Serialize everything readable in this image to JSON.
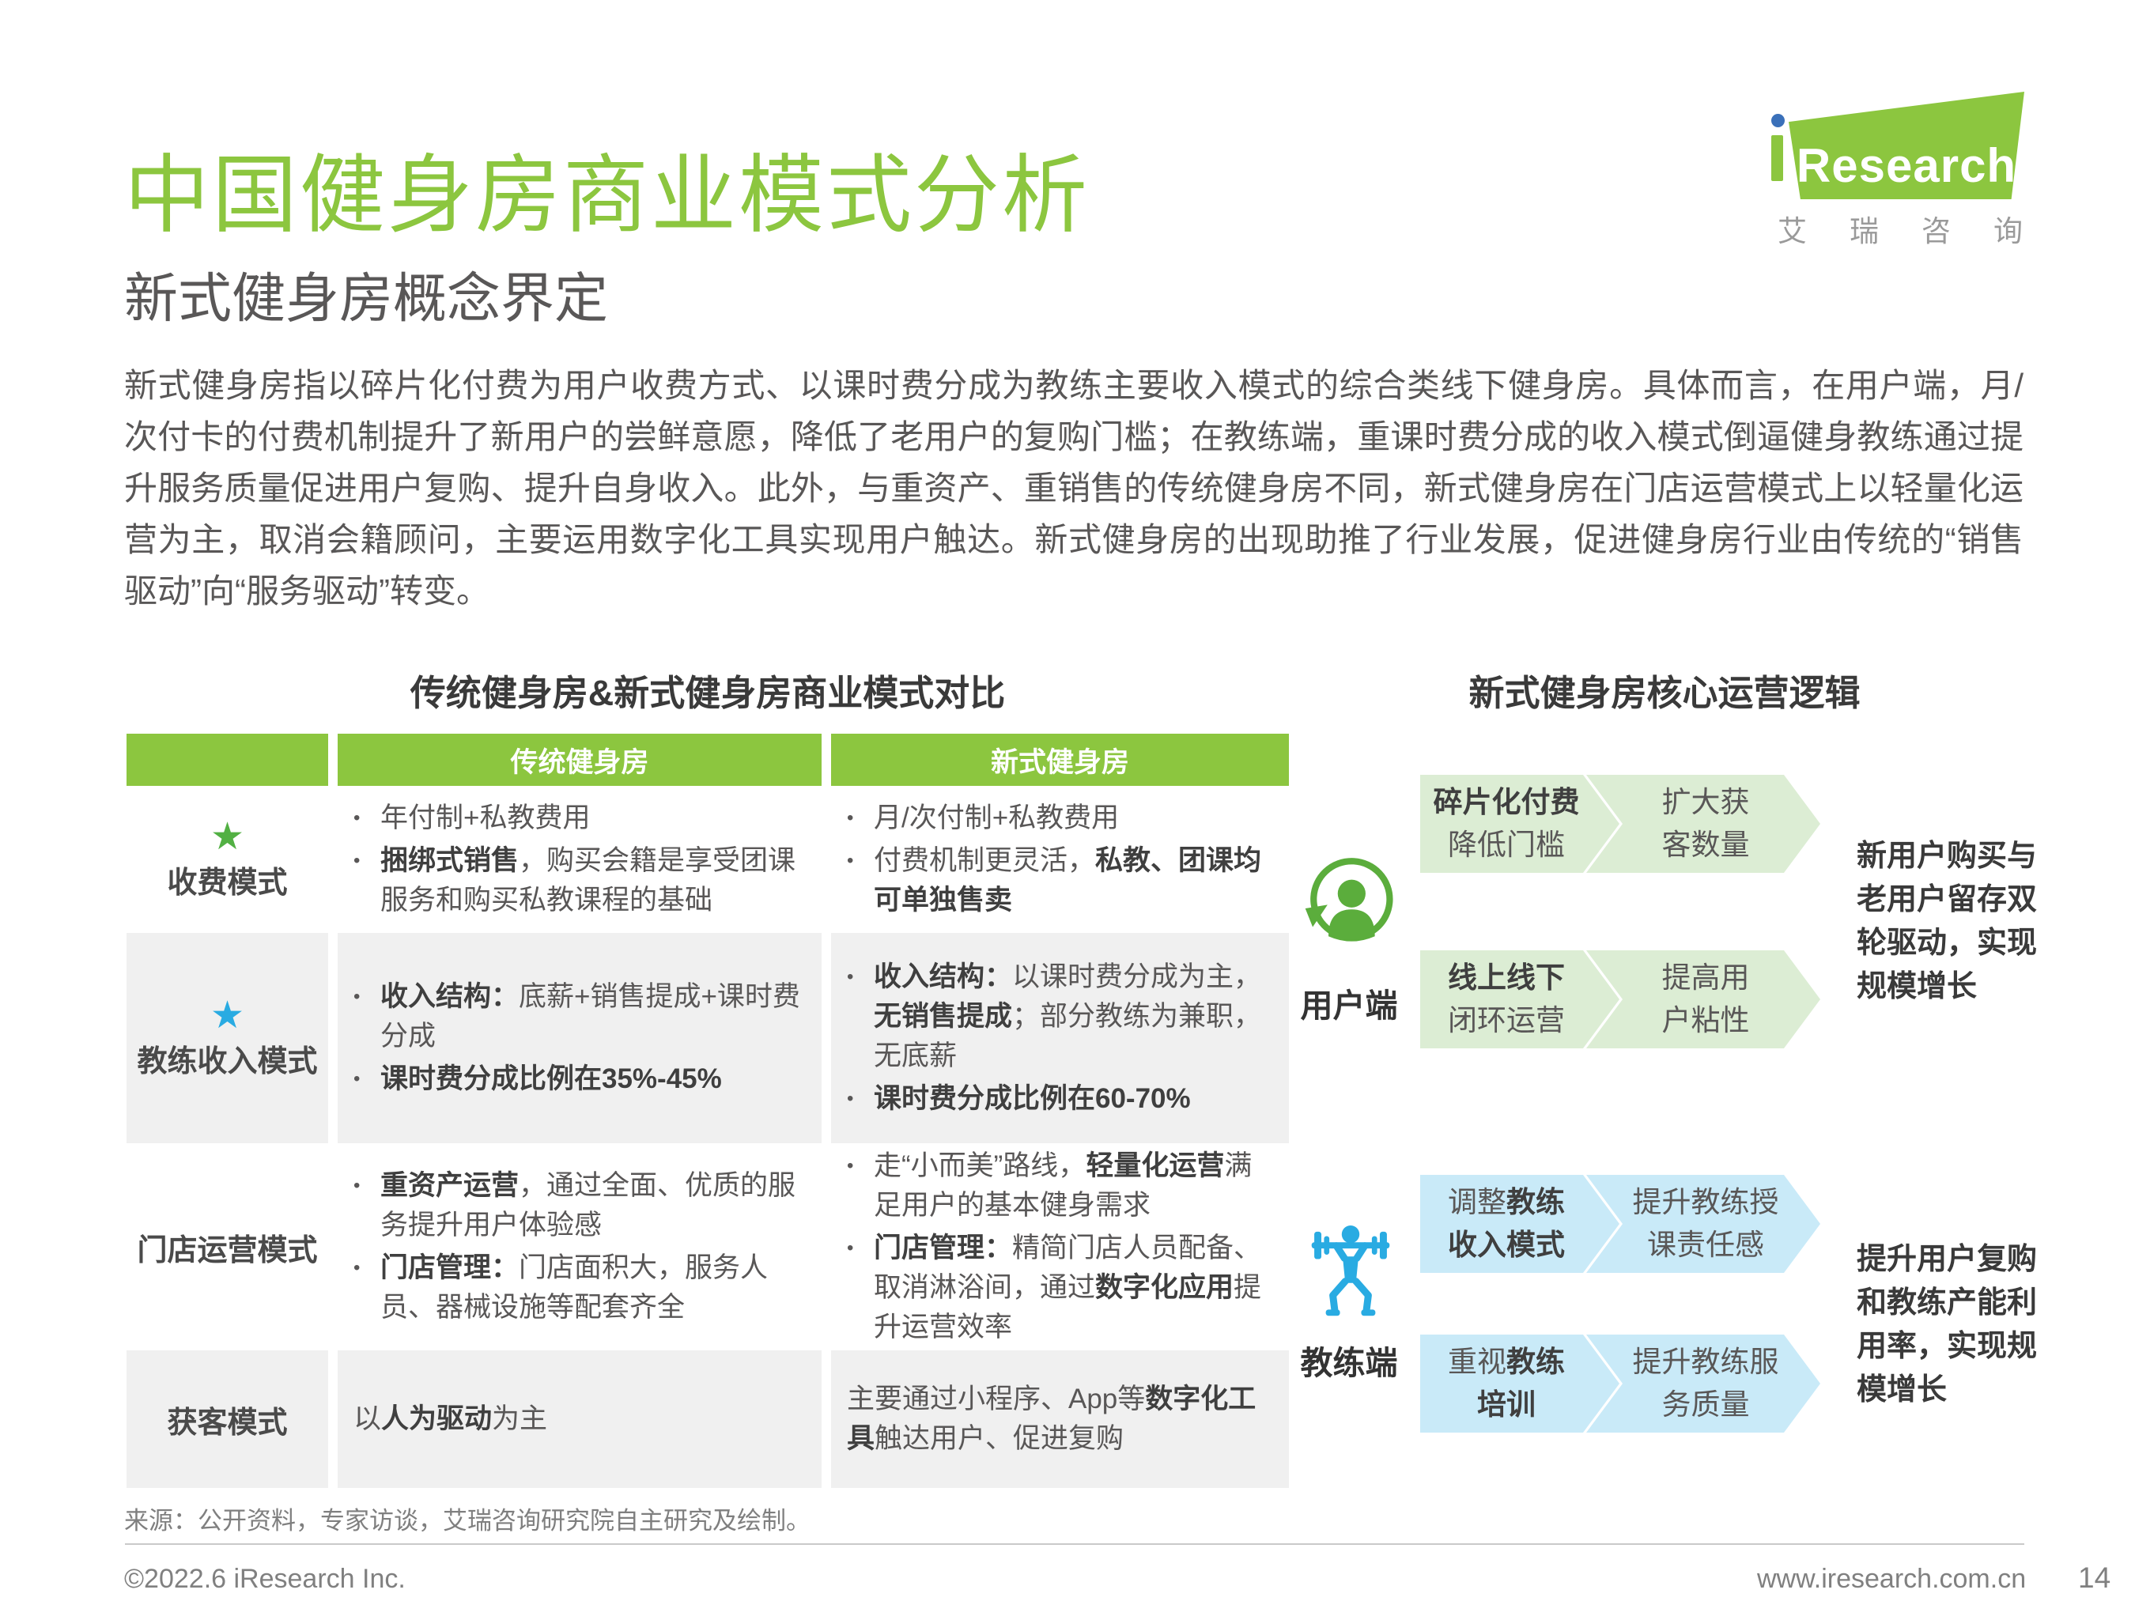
{
  "colors": {
    "brand_green": "#8CC63F",
    "star_green": "#52B043",
    "star_blue": "#29ABE2",
    "coach_icon_blue": "#29ABE2",
    "user_icon_green": "#5BAD3C",
    "flow_green_bg": "#DCEDD4",
    "flow_blue_bg": "#C9EAF8",
    "row_gray_bg": "#F0F0F0",
    "logo_dot_blue": "#3A70B9"
  },
  "icons": {
    "star": "★",
    "bullet": "•"
  },
  "logo": {
    "name": "Research",
    "cn": [
      "艾",
      "瑞",
      "咨",
      "询"
    ]
  },
  "header": {
    "title": "中国健身房商业模式分析",
    "subtitle": "新式健身房概念界定",
    "intro": "新式健身房指以碎片化付费为用户收费方式、以课时费分成为教练主要收入模式的综合类线下健身房。具体而言，在用户端，月/次付卡的付费机制提升了新用户的尝鲜意愿，降低了老用户的复购门槛；在教练端，重课时费分成的收入模式倒逼健身教练通过提升服务质量促进用户复购、提升自身收入。此外，与重资产、重销售的传统健身房不同，新式健身房在门店运营模式上以轻量化运营为主，取消会籍顾问，主要运用数字化工具实现用户触达。新式健身房的出现助推了行业发展，促进健身房行业由传统的“销售驱动”向“服务驱动”转变。"
  },
  "comparison": {
    "title": "传统健身房&新式健身房商业模式对比",
    "header": {
      "traditional": "传统健身房",
      "modern": "新式健身房"
    },
    "rows": [
      {
        "star": "green",
        "label": "收费模式",
        "bullets": true,
        "traditional": [
          [
            {
              "t": "年付制+私教费用"
            }
          ],
          [
            {
              "t": "捆绑式销售",
              "b": true
            },
            {
              "t": "，购买会籍是享受团课服务和购买私教课程的基础"
            }
          ]
        ],
        "modern": [
          [
            {
              "t": "月/次付制+私教费用"
            }
          ],
          [
            {
              "t": "付费机制更灵活，"
            },
            {
              "t": "私教、团课均可单独售卖",
              "b": true
            }
          ]
        ]
      },
      {
        "star": "blue",
        "label": "教练收入模式",
        "bullets": true,
        "traditional": [
          [
            {
              "t": "收入结构：",
              "b": true
            },
            {
              "t": "底薪+销售提成+课时费分成"
            }
          ],
          [
            {
              "t": "课时费分成比例在35%-45%",
              "b": true
            }
          ]
        ],
        "modern": [
          [
            {
              "t": "收入结构：",
              "b": true
            },
            {
              "t": "以课时费分成为主，"
            },
            {
              "t": "无销售提成",
              "b": true
            },
            {
              "t": "；部分教练为兼职，无底薪"
            }
          ],
          [
            {
              "t": "课时费分成比例在60-70%",
              "b": true
            }
          ]
        ]
      },
      {
        "star": null,
        "label": "门店运营模式",
        "bullets": true,
        "traditional": [
          [
            {
              "t": "重资产运营",
              "b": true
            },
            {
              "t": "，通过全面、优质的服务提升用户体验感"
            }
          ],
          [
            {
              "t": "门店管理：",
              "b": true
            },
            {
              "t": "门店面积大，服务人员、器械设施等配套齐全"
            }
          ]
        ],
        "modern": [
          [
            {
              "t": "走“小而美”路线，"
            },
            {
              "t": "轻量化运营",
              "b": true
            },
            {
              "t": "满足用户的基本健身需求"
            }
          ],
          [
            {
              "t": "门店管理：",
              "b": true
            },
            {
              "t": "精简门店人员配备、取消淋浴间，通过"
            },
            {
              "t": "数字化应用",
              "b": true
            },
            {
              "t": "提升运营效率"
            }
          ]
        ]
      },
      {
        "star": null,
        "label": "获客模式",
        "bullets": false,
        "traditional": [
          [
            {
              "t": "以"
            },
            {
              "t": "人为驱动",
              "b": true
            },
            {
              "t": "为主"
            }
          ]
        ],
        "modern": [
          [
            {
              "t": "主要通过小程序、App等"
            },
            {
              "t": "数字化工具",
              "b": true
            },
            {
              "t": "触达用户、促进复购"
            }
          ]
        ]
      }
    ]
  },
  "logic": {
    "title": "新式健身房核心运营逻辑",
    "user": {
      "label": "用户端",
      "rows": [
        {
          "from": [
            [
              {
                "t": "碎片化付费",
                "b": true
              }
            ],
            [
              {
                "t": "降低门槛"
              }
            ]
          ],
          "to": [
            [
              {
                "t": "扩大获"
              }
            ],
            [
              {
                "t": "客数量"
              }
            ]
          ]
        },
        {
          "from": [
            [
              {
                "t": "线上线下",
                "b": true
              }
            ],
            [
              {
                "t": "闭环运营"
              }
            ]
          ],
          "to": [
            [
              {
                "t": "提高用"
              }
            ],
            [
              {
                "t": "户粘性"
              }
            ]
          ]
        }
      ],
      "outcome": "新用户购买与老用户留存双轮驱动，实现规模增长"
    },
    "coach": {
      "label": "教练端",
      "rows": [
        {
          "from": [
            [
              {
                "t": "调整"
              },
              {
                "t": "教练",
                "b": true
              }
            ],
            [
              {
                "t": "收入模式",
                "b": true
              }
            ]
          ],
          "to": [
            [
              {
                "t": "提升教练授"
              }
            ],
            [
              {
                "t": "课责任感"
              }
            ]
          ]
        },
        {
          "from": [
            [
              {
                "t": "重视"
              },
              {
                "t": "教练",
                "b": true
              }
            ],
            [
              {
                "t": "培训",
                "b": true
              }
            ]
          ],
          "to": [
            [
              {
                "t": "提升教练服"
              }
            ],
            [
              {
                "t": "务质量"
              }
            ]
          ]
        }
      ],
      "outcome": "提升用户复购和教练产能利用率，实现规模增长"
    }
  },
  "source": "来源：公开资料，专家访谈，艾瑞咨询研究院自主研究及绘制。",
  "footer": {
    "copyright": "©2022.6 iResearch Inc.",
    "website": "www.iresearch.com.cn",
    "page": "14"
  }
}
